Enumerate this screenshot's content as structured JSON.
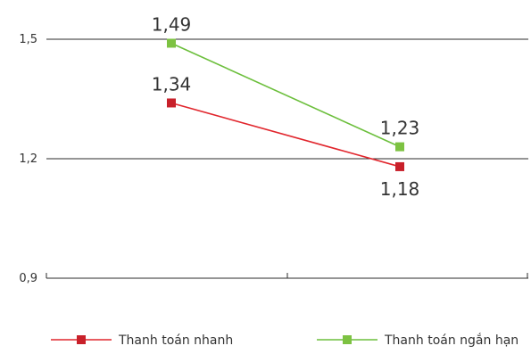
{
  "chart_data": {
    "type": "line",
    "title": "",
    "xlabel": "",
    "ylabel": "",
    "categories": [
      "",
      ""
    ],
    "ylim": [
      0.9,
      1.5
    ],
    "yticks": [
      "0,9",
      "1,2",
      "1,5"
    ],
    "grid": true,
    "legend_position": "bottom",
    "series": [
      {
        "name": "Thanh toán nhanh",
        "color": "#e1262d",
        "marker_color": "#c8202a",
        "values": [
          1.34,
          1.18
        ],
        "labels": [
          "1,34",
          "1,18"
        ]
      },
      {
        "name": "Thanh toán ngắn hạn",
        "color": "#6cbf3c",
        "marker_color": "#7dc242",
        "values": [
          1.49,
          1.23
        ],
        "labels": [
          "1,49",
          "1,23"
        ]
      }
    ]
  }
}
